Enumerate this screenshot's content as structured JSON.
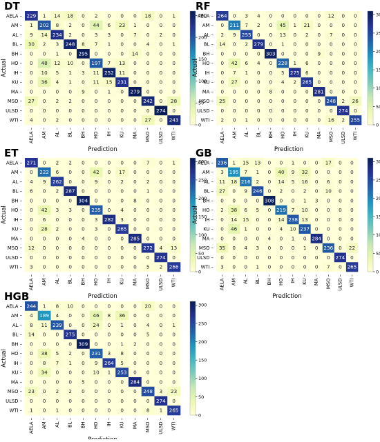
{
  "chart_data": [
    {
      "type": "heatmap",
      "title": "DT",
      "xlabel": "Prediction",
      "ylabel": "Actual",
      "categories": [
        "AELA",
        "AM",
        "AL",
        "BL",
        "BH",
        "HO",
        "IH",
        "KU",
        "MA",
        "MSO",
        "ULSD",
        "WTI"
      ],
      "values": [
        [
          229,
          1,
          14,
          18,
          0,
          2,
          0,
          0,
          0,
          18,
          0,
          1
        ],
        [
          1,
          202,
          8,
          2,
          0,
          44,
          6,
          23,
          1,
          0,
          0,
          0
        ],
        [
          9,
          14,
          234,
          2,
          0,
          3,
          3,
          0,
          7,
          0,
          2,
          0
        ],
        [
          30,
          2,
          3,
          248,
          8,
          7,
          1,
          0,
          0,
          4,
          0,
          1
        ],
        [
          0,
          0,
          1,
          0,
          295,
          0,
          0,
          0,
          14,
          0,
          0,
          0
        ],
        [
          0,
          48,
          12,
          10,
          0,
          197,
          7,
          13,
          0,
          0,
          0,
          0
        ],
        [
          0,
          10,
          5,
          1,
          3,
          11,
          252,
          11,
          0,
          0,
          0,
          0
        ],
        [
          0,
          36,
          4,
          1,
          0,
          11,
          15,
          231,
          0,
          0,
          0,
          0
        ],
        [
          0,
          0,
          0,
          0,
          9,
          0,
          1,
          0,
          279,
          0,
          0,
          0
        ],
        [
          27,
          0,
          2,
          2,
          0,
          0,
          0,
          0,
          0,
          242,
          0,
          28
        ],
        [
          0,
          0,
          0,
          0,
          0,
          0,
          0,
          0,
          0,
          0,
          274,
          0
        ],
        [
          4,
          0,
          2,
          0,
          0,
          0,
          0,
          0,
          0,
          27,
          0,
          243
        ]
      ],
      "colorbar": {
        "range": [
          0,
          260
        ],
        "ticks": [
          "0",
          "50",
          "100",
          "150",
          "200",
          "250"
        ]
      }
    },
    {
      "type": "heatmap",
      "title": "RF",
      "xlabel": "Prediction",
      "ylabel": "Actual",
      "categories": [
        "AELA",
        "AM",
        "AL",
        "BL",
        "BH",
        "HO",
        "IH",
        "KU",
        "MA",
        "MSO",
        "ULSD",
        "WTI"
      ],
      "values": [
        [
          264,
          0,
          3,
          4,
          0,
          0,
          0,
          0,
          0,
          12,
          0,
          0
        ],
        [
          0,
          211,
          7,
          2,
          0,
          45,
          1,
          21,
          0,
          0,
          0,
          0
        ],
        [
          2,
          9,
          255,
          0,
          0,
          13,
          0,
          2,
          0,
          7,
          0,
          0
        ],
        [
          14,
          0,
          2,
          279,
          0,
          1,
          0,
          0,
          0,
          0,
          0,
          0
        ],
        [
          0,
          0,
          0,
          0,
          303,
          0,
          0,
          0,
          9,
          0,
          0,
          0
        ],
        [
          0,
          42,
          6,
          4,
          0,
          228,
          1,
          6,
          0,
          0,
          0,
          0
        ],
        [
          0,
          7,
          1,
          0,
          0,
          5,
          275,
          6,
          0,
          0,
          0,
          0
        ],
        [
          0,
          27,
          0,
          0,
          0,
          4,
          2,
          265,
          0,
          0,
          0,
          0
        ],
        [
          0,
          0,
          0,
          0,
          8,
          0,
          0,
          0,
          281,
          0,
          0,
          0
        ],
        [
          25,
          0,
          0,
          0,
          0,
          0,
          0,
          0,
          0,
          248,
          2,
          26
        ],
        [
          0,
          0,
          0,
          0,
          0,
          0,
          0,
          0,
          0,
          0,
          274,
          0
        ],
        [
          2,
          0,
          1,
          0,
          0,
          0,
          0,
          0,
          0,
          16,
          2,
          255
        ]
      ],
      "colorbar": {
        "range": [
          0,
          310
        ],
        "ticks": [
          "0",
          "50",
          "100",
          "150",
          "200",
          "250",
          "300"
        ]
      }
    },
    {
      "type": "heatmap",
      "title": "ET",
      "xlabel": "Prediction",
      "ylabel": "Actual",
      "categories": [
        "AELA",
        "AM",
        "AL",
        "BL",
        "BH",
        "HO",
        "IH",
        "KU",
        "MA",
        "MSO",
        "ULSD",
        "WTI"
      ],
      "values": [
        [
          271,
          0,
          2,
          2,
          0,
          0,
          0,
          0,
          0,
          7,
          0,
          1
        ],
        [
          0,
          222,
          6,
          0,
          0,
          42,
          0,
          17,
          0,
          0,
          0,
          0
        ],
        [
          4,
          9,
          262,
          0,
          0,
          9,
          0,
          2,
          0,
          2,
          0,
          0
        ],
        [
          6,
          0,
          2,
          287,
          0,
          0,
          0,
          0,
          0,
          1,
          0,
          0
        ],
        [
          0,
          0,
          0,
          0,
          304,
          0,
          0,
          0,
          8,
          0,
          0,
          0
        ],
        [
          0,
          42,
          3,
          3,
          0,
          235,
          0,
          4,
          0,
          0,
          0,
          0
        ],
        [
          0,
          6,
          0,
          0,
          0,
          3,
          282,
          3,
          0,
          0,
          0,
          0
        ],
        [
          0,
          28,
          2,
          0,
          0,
          3,
          0,
          265,
          0,
          0,
          0,
          0
        ],
        [
          0,
          0,
          0,
          0,
          4,
          0,
          0,
          0,
          285,
          0,
          0,
          0
        ],
        [
          12,
          0,
          0,
          0,
          0,
          0,
          0,
          0,
          0,
          272,
          4,
          13
        ],
        [
          0,
          0,
          0,
          0,
          0,
          0,
          0,
          0,
          0,
          0,
          274,
          0
        ],
        [
          3,
          0,
          0,
          0,
          0,
          0,
          0,
          0,
          0,
          5,
          2,
          266
        ]
      ],
      "colorbar": {
        "range": [
          0,
          310
        ],
        "ticks": [
          "0",
          "50",
          "100",
          "150",
          "200",
          "250",
          "300"
        ]
      }
    },
    {
      "type": "heatmap",
      "title": "GB",
      "xlabel": "Prediction",
      "ylabel": "Actual",
      "categories": [
        "AELA",
        "AM",
        "AL",
        "BL",
        "BH",
        "HO",
        "IH",
        "KU",
        "MA",
        "MSO",
        "ULSD",
        "WTI"
      ],
      "values": [
        [
          236,
          1,
          15,
          13,
          0,
          0,
          1,
          0,
          0,
          17,
          0,
          0
        ],
        [
          3,
          195,
          7,
          1,
          0,
          40,
          9,
          32,
          0,
          0,
          0,
          0
        ],
        [
          11,
          18,
          216,
          2,
          0,
          14,
          5,
          16,
          0,
          6,
          0,
          0
        ],
        [
          27,
          0,
          9,
          246,
          0,
          2,
          0,
          2,
          0,
          10,
          0,
          0
        ],
        [
          0,
          0,
          0,
          0,
          308,
          0,
          0,
          1,
          3,
          0,
          0,
          0
        ],
        [
          2,
          38,
          6,
          5,
          0,
          219,
          7,
          10,
          0,
          0,
          0,
          0
        ],
        [
          0,
          14,
          15,
          0,
          0,
          14,
          238,
          13,
          0,
          0,
          0,
          0
        ],
        [
          0,
          46,
          1,
          0,
          0,
          4,
          10,
          237,
          0,
          0,
          0,
          0
        ],
        [
          0,
          0,
          0,
          0,
          4,
          0,
          1,
          0,
          284,
          0,
          0,
          0
        ],
        [
          35,
          0,
          4,
          3,
          0,
          0,
          0,
          1,
          0,
          236,
          0,
          22
        ],
        [
          0,
          0,
          0,
          0,
          0,
          0,
          0,
          0,
          0,
          0,
          274,
          0
        ],
        [
          3,
          0,
          0,
          1,
          0,
          0,
          0,
          0,
          0,
          7,
          0,
          265
        ]
      ],
      "colorbar": {
        "range": [
          0,
          310
        ],
        "ticks": [
          "0",
          "50",
          "100",
          "150",
          "200",
          "250",
          "300"
        ]
      }
    },
    {
      "type": "heatmap",
      "title": "HGB",
      "xlabel": "Prediction",
      "ylabel": "Actual",
      "categories": [
        "AELA",
        "AM",
        "AL",
        "BL",
        "BH",
        "HO",
        "IH",
        "KU",
        "MA",
        "MSO",
        "ULSD",
        "WTI"
      ],
      "values": [
        [
          244,
          1,
          8,
          10,
          0,
          0,
          0,
          0,
          0,
          20,
          0,
          0
        ],
        [
          4,
          189,
          4,
          0,
          0,
          46,
          8,
          36,
          0,
          0,
          0,
          0
        ],
        [
          8,
          11,
          239,
          0,
          0,
          24,
          0,
          1,
          0,
          4,
          0,
          1
        ],
        [
          14,
          0,
          0,
          275,
          0,
          0,
          0,
          0,
          0,
          5,
          0,
          0
        ],
        [
          0,
          0,
          0,
          0,
          309,
          0,
          0,
          1,
          2,
          0,
          0,
          0
        ],
        [
          0,
          38,
          5,
          2,
          0,
          231,
          3,
          8,
          0,
          0,
          0,
          0
        ],
        [
          0,
          8,
          7,
          1,
          0,
          9,
          264,
          5,
          0,
          0,
          0,
          0
        ],
        [
          0,
          34,
          0,
          0,
          0,
          10,
          1,
          253,
          0,
          0,
          0,
          0
        ],
        [
          0,
          0,
          0,
          0,
          5,
          0,
          0,
          0,
          284,
          0,
          0,
          0
        ],
        [
          23,
          0,
          2,
          2,
          0,
          0,
          0,
          0,
          0,
          248,
          3,
          23
        ],
        [
          0,
          0,
          0,
          0,
          0,
          0,
          0,
          0,
          0,
          0,
          274,
          0
        ],
        [
          1,
          0,
          1,
          0,
          0,
          0,
          0,
          0,
          0,
          8,
          1,
          265
        ]
      ],
      "colorbar": {
        "range": [
          0,
          310
        ],
        "ticks": [
          "0",
          "50",
          "100",
          "150",
          "200",
          "250",
          "300"
        ]
      }
    }
  ]
}
